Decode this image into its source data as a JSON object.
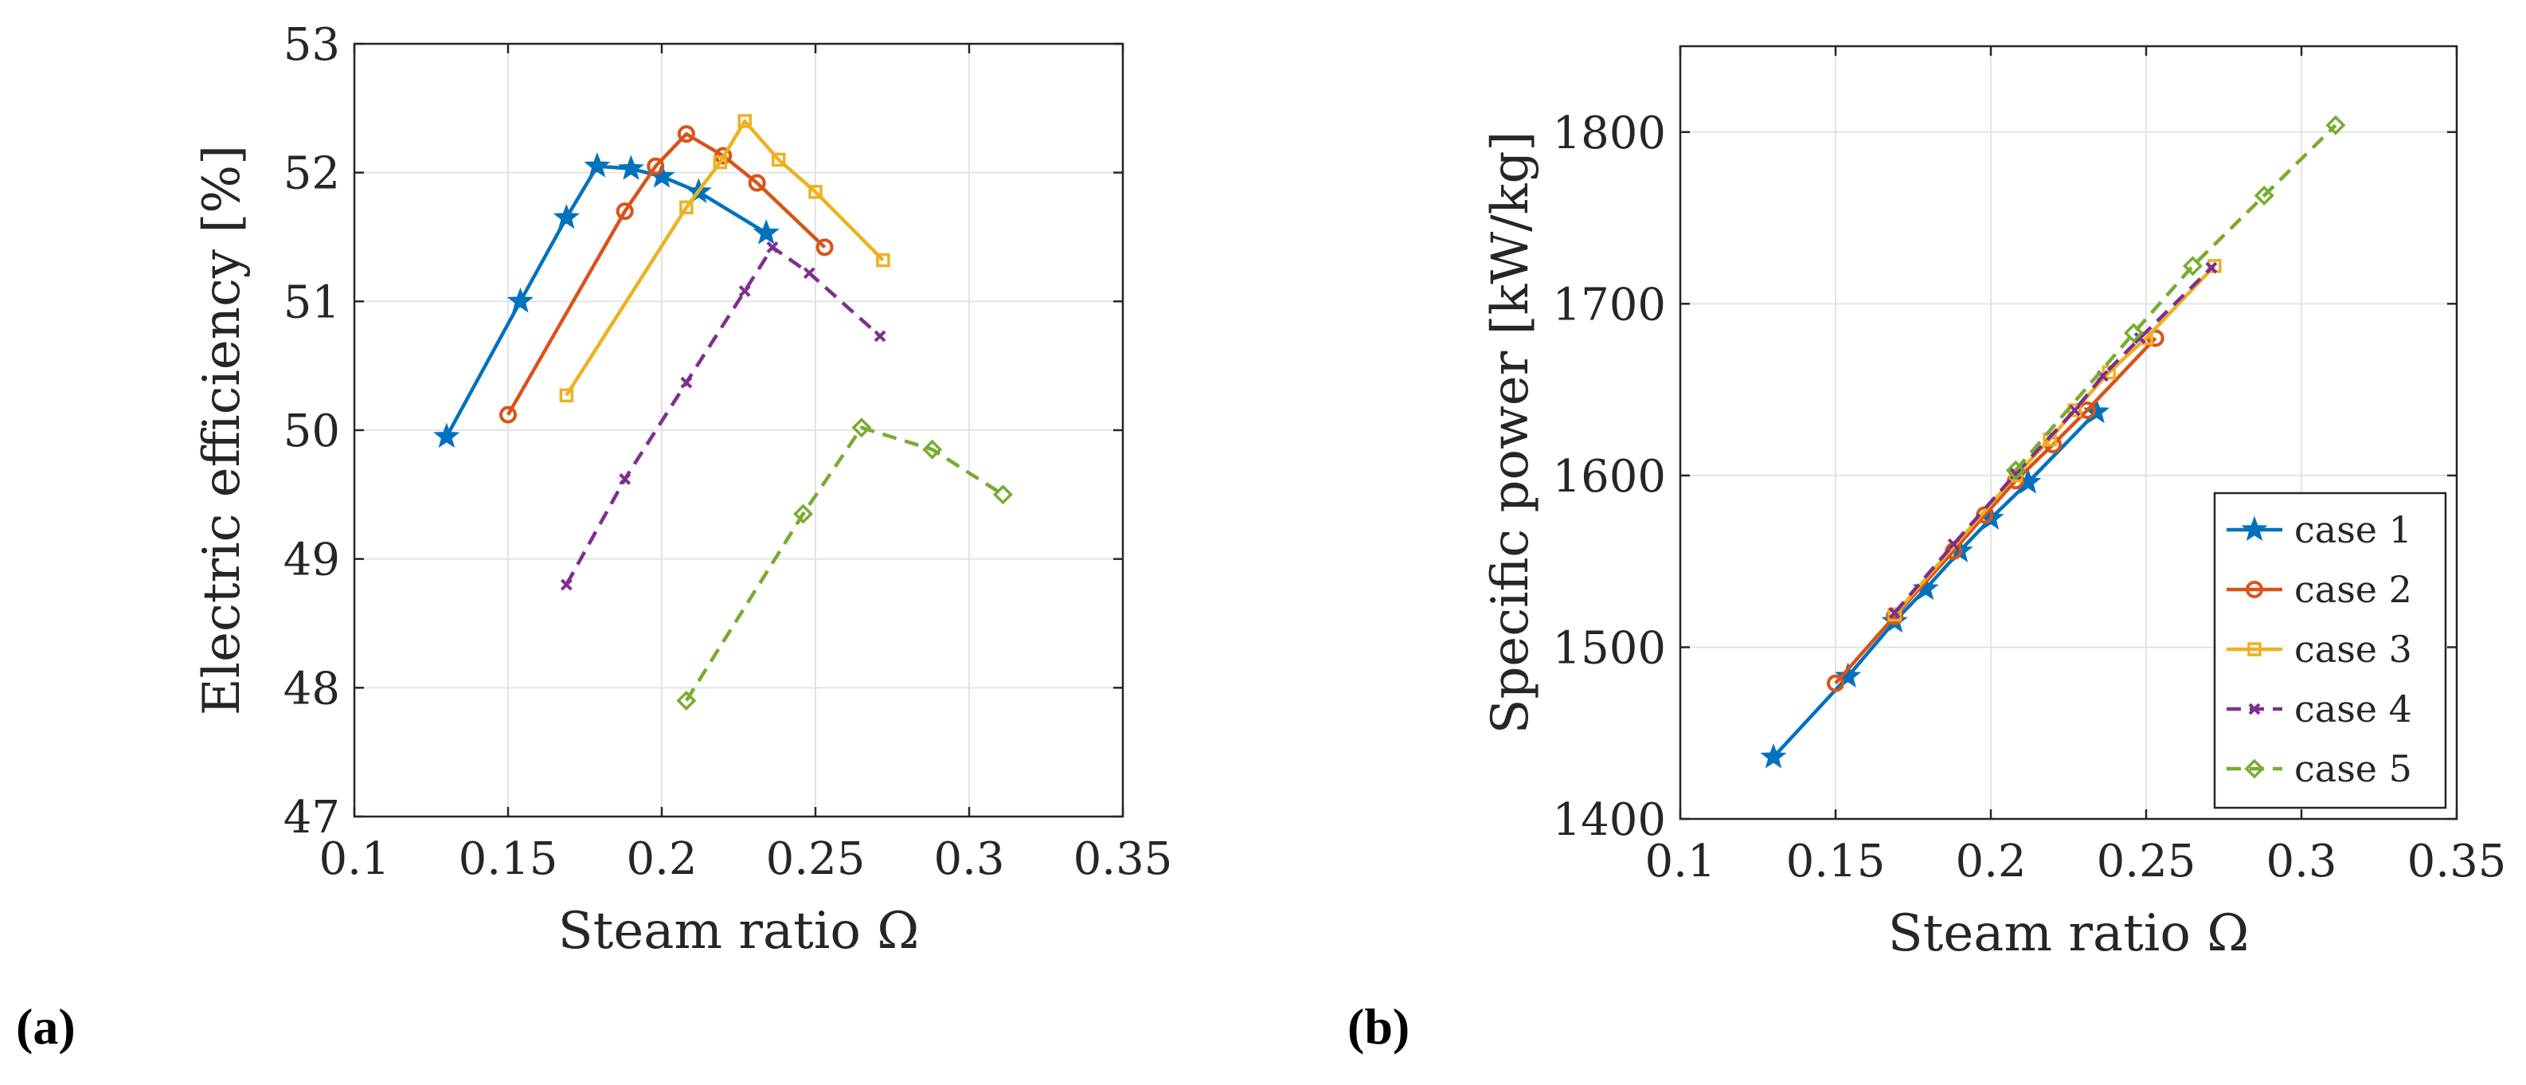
{
  "chart_data": [
    {
      "panel_label": "(a)",
      "type": "line",
      "xlabel": "Steam ratio Ω",
      "ylabel": "Electric efficiency [%]",
      "xlim": [
        0.1,
        0.35
      ],
      "ylim": [
        47,
        53
      ],
      "xticks": [
        0.1,
        0.15,
        0.2,
        0.25,
        0.3,
        0.35
      ],
      "xtick_labels": [
        "0.1",
        "0.15",
        "0.2",
        "0.25",
        "0.3",
        "0.35"
      ],
      "yticks": [
        47,
        48,
        49,
        50,
        51,
        52,
        53
      ],
      "ytick_labels": [
        "47",
        "48",
        "49",
        "50",
        "51",
        "52",
        "53"
      ],
      "grid": true,
      "series": [
        {
          "name": "case 1",
          "color": "#0072BD",
          "marker": "star",
          "dash": false,
          "x": [
            0.13,
            0.154,
            0.169,
            0.179,
            0.19,
            0.2,
            0.212,
            0.234
          ],
          "y": [
            49.95,
            51.0,
            51.65,
            52.05,
            52.03,
            51.97,
            51.85,
            51.53
          ]
        },
        {
          "name": "case 2",
          "color": "#D95319",
          "marker": "circle",
          "dash": false,
          "x": [
            0.15,
            0.188,
            0.198,
            0.208,
            0.22,
            0.231,
            0.253
          ],
          "y": [
            50.12,
            51.7,
            52.05,
            52.3,
            52.13,
            51.92,
            51.42
          ]
        },
        {
          "name": "case 3",
          "color": "#EDB120",
          "marker": "square",
          "dash": false,
          "x": [
            0.169,
            0.208,
            0.219,
            0.227,
            0.238,
            0.25,
            0.272
          ],
          "y": [
            50.27,
            51.73,
            52.08,
            52.4,
            52.1,
            51.85,
            51.32
          ]
        },
        {
          "name": "case 4",
          "color": "#7E2F8E",
          "marker": "x",
          "dash": true,
          "x": [
            0.169,
            0.188,
            0.208,
            0.227,
            0.236,
            0.248,
            0.271
          ],
          "y": [
            48.8,
            49.62,
            50.37,
            51.08,
            51.42,
            51.22,
            50.73
          ]
        },
        {
          "name": "case 5",
          "color": "#77AC30",
          "marker": "diamond",
          "dash": true,
          "x": [
            0.208,
            0.246,
            0.265,
            0.288,
            0.311
          ],
          "y": [
            47.9,
            49.35,
            50.02,
            49.85,
            49.5
          ]
        }
      ]
    },
    {
      "panel_label": "(b)",
      "type": "line",
      "xlabel": "Steam ratio Ω",
      "ylabel": "Specific power [kW/kg]",
      "xlim": [
        0.1,
        0.35
      ],
      "ylim": [
        1400,
        1850
      ],
      "xticks": [
        0.1,
        0.15,
        0.2,
        0.25,
        0.3,
        0.35
      ],
      "xtick_labels": [
        "0.1",
        "0.15",
        "0.2",
        "0.25",
        "0.3",
        "0.35"
      ],
      "yticks": [
        1400,
        1500,
        1600,
        1700,
        1800
      ],
      "ytick_labels": [
        "1400",
        "1500",
        "1600",
        "1700",
        "1800"
      ],
      "grid": true,
      "legend": "bottom-right",
      "series": [
        {
          "name": "case 1",
          "color": "#0072BD",
          "marker": "star",
          "dash": false,
          "x": [
            0.13,
            0.154,
            0.169,
            0.179,
            0.19,
            0.2,
            0.212,
            0.234
          ],
          "y": [
            1436,
            1483,
            1515,
            1534,
            1556,
            1575,
            1596,
            1637
          ]
        },
        {
          "name": "case 2",
          "color": "#D95319",
          "marker": "circle",
          "dash": false,
          "x": [
            0.15,
            0.169,
            0.188,
            0.198,
            0.208,
            0.22,
            0.231,
            0.253
          ],
          "y": [
            1479,
            1518,
            1556,
            1577,
            1597,
            1618,
            1638,
            1680
          ]
        },
        {
          "name": "case 3",
          "color": "#EDB120",
          "marker": "square",
          "dash": false,
          "x": [
            0.169,
            0.208,
            0.219,
            0.227,
            0.238,
            0.25,
            0.272
          ],
          "y": [
            1519,
            1600,
            1621,
            1638,
            1660,
            1680,
            1722
          ]
        },
        {
          "name": "case 4",
          "color": "#7E2F8E",
          "marker": "x",
          "dash": true,
          "x": [
            0.169,
            0.188,
            0.208,
            0.227,
            0.236,
            0.248,
            0.271
          ],
          "y": [
            1520,
            1560,
            1601,
            1638,
            1658,
            1680,
            1721
          ]
        },
        {
          "name": "case 5",
          "color": "#77AC30",
          "marker": "diamond",
          "dash": true,
          "x": [
            0.208,
            0.246,
            0.265,
            0.288,
            0.311
          ],
          "y": [
            1603,
            1683,
            1722,
            1763,
            1804
          ]
        }
      ]
    }
  ]
}
